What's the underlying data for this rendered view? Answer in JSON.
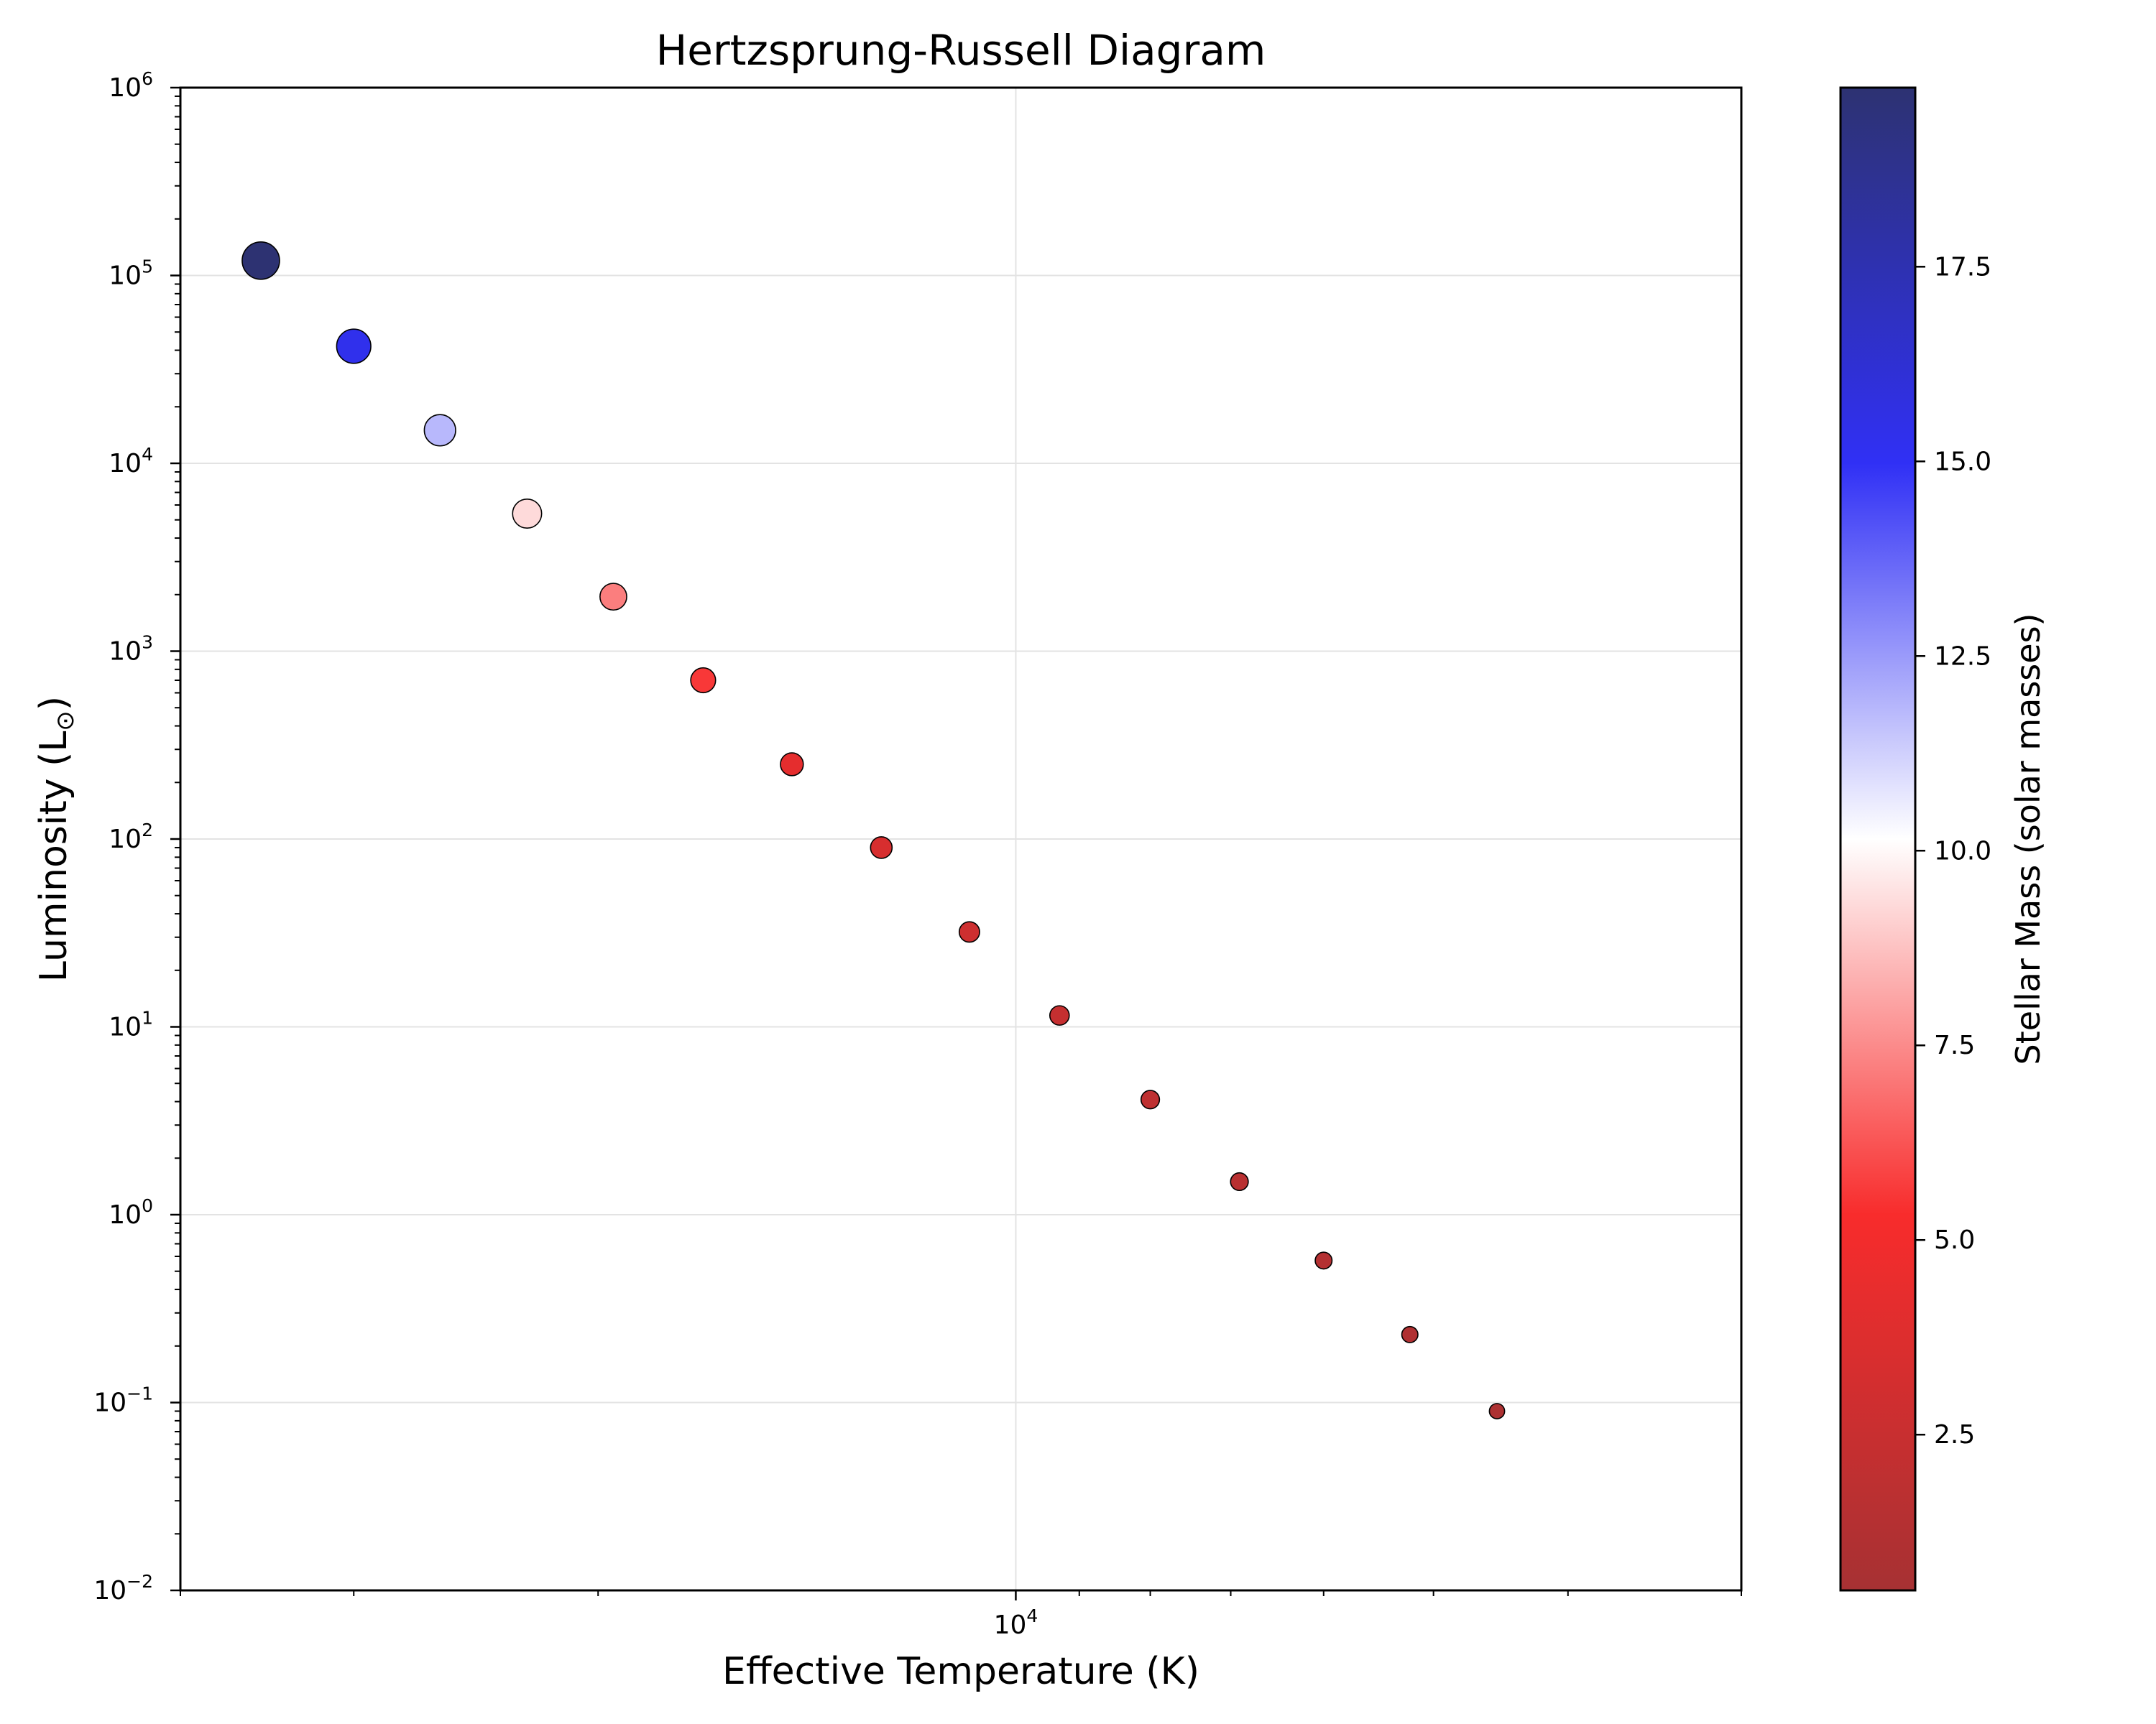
{
  "chart_data": {
    "type": "scatter",
    "title": "Hertzsprung-Russell Diagram",
    "xlabel": "Effective Temperature (K)",
    "ylabel": "Luminosity (L",
    "ylabel_symbol": "⊙",
    "ylabel_close": ")",
    "x_scale": "log",
    "y_scale": "log",
    "x_inverted": true,
    "xlim": [
      40000,
      3000
    ],
    "ylim": [
      0.01,
      1000000
    ],
    "grid": true,
    "x_tick_labels": [
      {
        "value": 10000,
        "label": "10",
        "exp": "4"
      }
    ],
    "y_tick_labels": [
      {
        "value": 1000000,
        "label": "10",
        "exp": "6"
      },
      {
        "value": 100000,
        "label": "10",
        "exp": "5"
      },
      {
        "value": 10000,
        "label": "10",
        "exp": "4"
      },
      {
        "value": 1000,
        "label": "10",
        "exp": "3"
      },
      {
        "value": 100,
        "label": "10",
        "exp": "2"
      },
      {
        "value": 10,
        "label": "10",
        "exp": "1"
      },
      {
        "value": 1,
        "label": "10",
        "exp": "0"
      },
      {
        "value": 0.1,
        "label": "10",
        "exp": "−1"
      },
      {
        "value": 0.01,
        "label": "10",
        "exp": "−2"
      }
    ],
    "colorbar": {
      "label": "Stellar Mass (solar masses)",
      "range": [
        0.5,
        19.8
      ],
      "ticks": [
        2.5,
        5.0,
        7.5,
        10.0,
        12.5,
        15.0,
        17.5
      ],
      "tick_labels": [
        "2.5",
        "5.0",
        "7.5",
        "10.0",
        "12.5",
        "15.0",
        "17.5"
      ],
      "colormap": [
        [
          0.0,
          "#a63133"
        ],
        [
          0.25,
          "#f82c2c"
        ],
        [
          0.5,
          "#ffffff"
        ],
        [
          0.75,
          "#3030f5"
        ],
        [
          1.0,
          "#2d3272"
        ]
      ]
    },
    "points": [
      {
        "temperature": 35000,
        "luminosity": 120000,
        "mass": 19.8
      },
      {
        "temperature": 30000,
        "luminosity": 42000,
        "mass": 15.3
      },
      {
        "temperature": 26000,
        "luminosity": 15000,
        "mass": 11.8
      },
      {
        "temperature": 22500,
        "luminosity": 5400,
        "mass": 9.3
      },
      {
        "temperature": 19500,
        "luminosity": 1950,
        "mass": 7.2
      },
      {
        "temperature": 16800,
        "luminosity": 700,
        "mass": 5.6
      },
      {
        "temperature": 14500,
        "luminosity": 250,
        "mass": 4.2
      },
      {
        "temperature": 12500,
        "luminosity": 90,
        "mass": 3.4
      },
      {
        "temperature": 10800,
        "luminosity": 32,
        "mass": 2.8
      },
      {
        "temperature": 9300,
        "luminosity": 11.5,
        "mass": 2.3
      },
      {
        "temperature": 8000,
        "luminosity": 4.1,
        "mass": 1.9
      },
      {
        "temperature": 6900,
        "luminosity": 1.5,
        "mass": 1.6
      },
      {
        "temperature": 6000,
        "luminosity": 0.57,
        "mass": 1.3
      },
      {
        "temperature": 5200,
        "luminosity": 0.23,
        "mass": 1.1
      },
      {
        "temperature": 4500,
        "luminosity": 0.09,
        "mass": 0.9
      }
    ],
    "marker_edge_color": "#000000"
  }
}
